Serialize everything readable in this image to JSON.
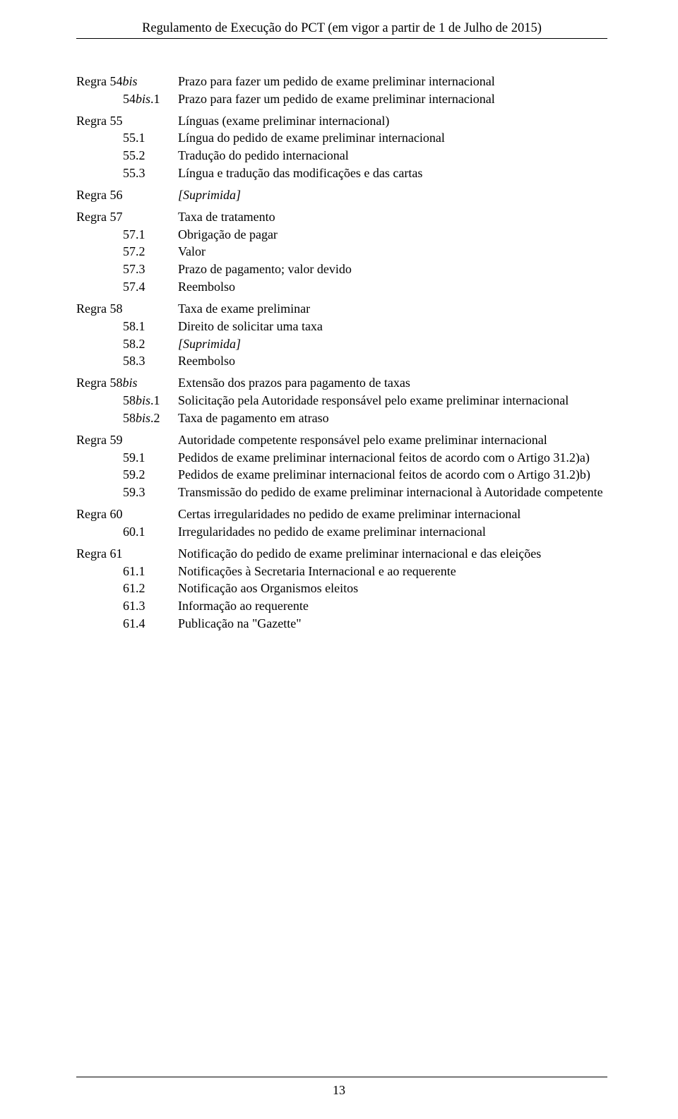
{
  "header": "Regulamento de Execução do PCT (em vigor a partir de 1 de Julho de 2015)",
  "page_number": "13",
  "rules": [
    {
      "rule_prefix": "Regra ",
      "rule_num": "54",
      "rule_suffix_italic": "bis",
      "title": "Prazo para fazer um pedido de exame preliminar internacional",
      "subs": [
        {
          "num": "54",
          "suffix_italic": "bis",
          "after": ".1",
          "desc": "Prazo para fazer um pedido de exame preliminar internacional"
        }
      ]
    },
    {
      "rule_prefix": "Regra ",
      "rule_num": "55",
      "title": "Línguas (exame preliminar internacional)",
      "subs": [
        {
          "num": "55.1",
          "desc": "Língua do pedido de exame preliminar internacional"
        },
        {
          "num": "55.2",
          "desc": "Tradução do pedido internacional"
        },
        {
          "num": "55.3",
          "desc": "Língua e tradução das modificações e das cartas"
        }
      ]
    },
    {
      "rule_prefix": "Regra ",
      "rule_num": "56",
      "title_italic": "[Suprimida]",
      "subs": []
    },
    {
      "rule_prefix": "Regra ",
      "rule_num": "57",
      "title": "Taxa de tratamento",
      "subs": [
        {
          "num": "57.1",
          "desc": "Obrigação de pagar"
        },
        {
          "num": "57.2",
          "desc": "Valor"
        },
        {
          "num": "57.3",
          "desc": "Prazo de pagamento;  valor devido"
        },
        {
          "num": "57.4",
          "desc": "Reembolso"
        }
      ]
    },
    {
      "rule_prefix": "Regra ",
      "rule_num": "58",
      "title": "Taxa de exame preliminar",
      "subs": [
        {
          "num": "58.1",
          "desc": "Direito de solicitar uma taxa"
        },
        {
          "num": "58.2",
          "desc_italic": "[Suprimida]"
        },
        {
          "num": "58.3",
          "desc": "Reembolso"
        }
      ]
    },
    {
      "rule_prefix": "Regra ",
      "rule_num": "58",
      "rule_suffix_italic": "bis",
      "title": "Extensão dos prazos para pagamento de taxas",
      "subs": [
        {
          "num": "58",
          "suffix_italic": "bis",
          "after": ".1",
          "desc": "Solicitação pela Autoridade responsável pelo exame preliminar internacional"
        },
        {
          "num": "58",
          "suffix_italic": "bis",
          "after": ".2",
          "desc": "Taxa de pagamento em atraso"
        }
      ]
    },
    {
      "rule_prefix": "Regra ",
      "rule_num": "59",
      "title": "Autoridade competente responsável pelo exame preliminar internacional",
      "subs": [
        {
          "num": "59.1",
          "desc": "Pedidos de exame preliminar internacional feitos de acordo com o Artigo 31.2)a)"
        },
        {
          "num": "59.2",
          "desc": "Pedidos de exame preliminar internacional feitos de acordo com o Artigo 31.2)b)"
        },
        {
          "num": "59.3",
          "desc": "Transmissão do pedido de exame preliminar internacional à Autoridade competente"
        }
      ]
    },
    {
      "rule_prefix": "Regra ",
      "rule_num": "60",
      "title": "Certas irregularidades no pedido de exame preliminar internacional",
      "subs": [
        {
          "num": "60.1",
          "desc": "Irregularidades no pedido de exame preliminar internacional"
        }
      ]
    },
    {
      "rule_prefix": "Regra ",
      "rule_num": "61",
      "title": "Notificação do pedido de exame preliminar internacional e das eleições",
      "subs": [
        {
          "num": "61.1",
          "desc": "Notificações à Secretaria Internacional e ao requerente"
        },
        {
          "num": "61.2",
          "desc": "Notificação aos Organismos eleitos"
        },
        {
          "num": "61.3",
          "desc": "Informação ao requerente"
        },
        {
          "num": "61.4",
          "desc": "Publicação na \"Gazette\""
        }
      ]
    }
  ]
}
